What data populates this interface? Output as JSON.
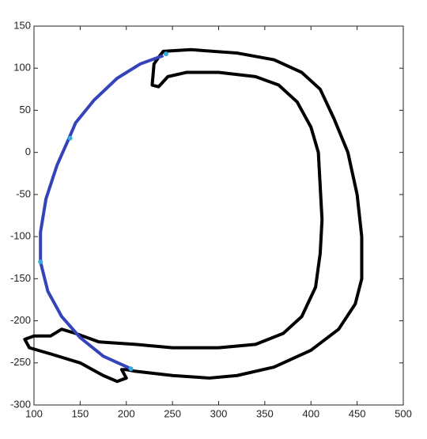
{
  "chart_data": {
    "type": "line",
    "xlim": [
      100,
      500
    ],
    "xticks": [
      100,
      150,
      200,
      250,
      300,
      350,
      400,
      450,
      500
    ],
    "ylim": [
      -300,
      150
    ],
    "yticks": [
      -300,
      -250,
      -200,
      -150,
      -100,
      -50,
      0,
      50,
      100,
      150
    ],
    "series": [
      {
        "color": "#000000",
        "width": 4,
        "markers": false,
        "x": [
          235,
          240,
          270,
          320,
          360,
          390,
          410,
          425,
          440,
          450,
          455,
          455,
          448,
          430,
          400,
          360,
          320,
          290,
          250,
          210,
          200,
          195,
          200,
          190,
          175,
          150,
          120,
          95,
          90,
          100,
          118,
          130,
          145,
          170,
          210,
          250,
          300,
          340,
          370,
          390,
          405,
          410,
          412,
          410,
          408,
          400,
          385,
          365,
          340,
          300,
          265,
          245,
          235,
          228,
          230,
          235
        ],
        "values": [
          113,
          120,
          122,
          118,
          110,
          95,
          75,
          40,
          0,
          -50,
          -100,
          -150,
          -180,
          -210,
          -235,
          -255,
          -265,
          -268,
          -265,
          -260,
          -258,
          -258,
          -268,
          -272,
          -265,
          -250,
          -240,
          -232,
          -222,
          -218,
          -218,
          -210,
          -215,
          -225,
          -228,
          -232,
          -232,
          -228,
          -215,
          -195,
          -160,
          -120,
          -80,
          -40,
          0,
          30,
          60,
          80,
          90,
          95,
          95,
          90,
          78,
          80,
          105,
          113
        ]
      },
      {
        "color": "#3344bb",
        "width": 4,
        "markers": false,
        "x": [
          240,
          215,
          190,
          165,
          145,
          138,
          125,
          113,
          107,
          107,
          115,
          130,
          150,
          175,
          205
        ],
        "values": [
          115,
          105,
          88,
          62,
          35,
          17,
          -15,
          -55,
          -95,
          -130,
          -165,
          -195,
          -220,
          -242,
          -257
        ]
      },
      {
        "color": "#33aadd",
        "width": 0,
        "markers": true,
        "x": [
          243,
          139,
          107,
          205
        ],
        "values": [
          117,
          17,
          -130,
          -257
        ]
      }
    ]
  }
}
